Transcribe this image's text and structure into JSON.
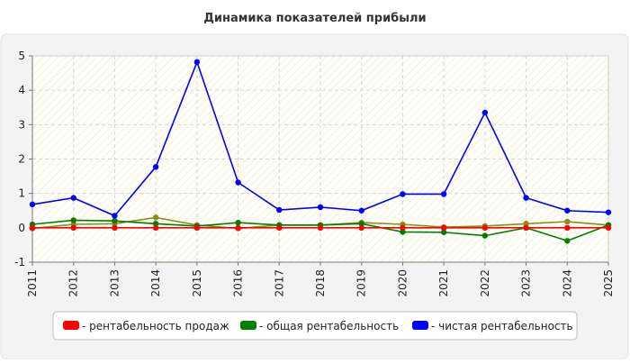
{
  "chart_data": {
    "type": "line",
    "title": "Динамика показателей прибыли",
    "xlabel": "",
    "ylabel": "",
    "x": [
      "2011",
      "2012",
      "2013",
      "2014",
      "2015",
      "2016",
      "2017",
      "2018",
      "2019",
      "2020",
      "2021",
      "2022",
      "2023",
      "2024",
      "2025"
    ],
    "ylim": [
      -1,
      5
    ],
    "yticks": [
      "-1",
      "0",
      "1",
      "2",
      "3",
      "4",
      "5"
    ],
    "grid": true,
    "legend_position": "bottom",
    "series": [
      {
        "name": "- рентабельность продаж",
        "color": "#ff0000",
        "values": [
          0.0,
          0.0,
          0.0,
          0.0,
          0.0,
          0.0,
          0.0,
          0.0,
          0.0,
          0.0,
          0.0,
          0.0,
          0.0,
          0.0,
          0.0
        ]
      },
      {
        "name": "- общая рентабельность",
        "color": "#008000",
        "values": [
          0.1,
          0.22,
          0.2,
          0.12,
          0.05,
          0.15,
          0.08,
          0.08,
          0.12,
          -0.12,
          -0.13,
          -0.23,
          0.0,
          -0.38,
          0.08
        ]
      },
      {
        "name": "- чистая рентабельность",
        "color": "#0000ff",
        "values": [
          0.68,
          0.87,
          0.35,
          1.77,
          4.82,
          1.32,
          0.52,
          0.6,
          0.5,
          0.98,
          0.98,
          3.35,
          0.87,
          0.5,
          0.45
        ]
      },
      {
        "name": "",
        "color": "#8c8c14",
        "values": [
          -0.02,
          0.1,
          0.12,
          0.3,
          0.08,
          -0.02,
          0.08,
          0.08,
          0.15,
          0.1,
          0.02,
          0.05,
          0.12,
          0.18,
          0.08
        ]
      }
    ]
  }
}
